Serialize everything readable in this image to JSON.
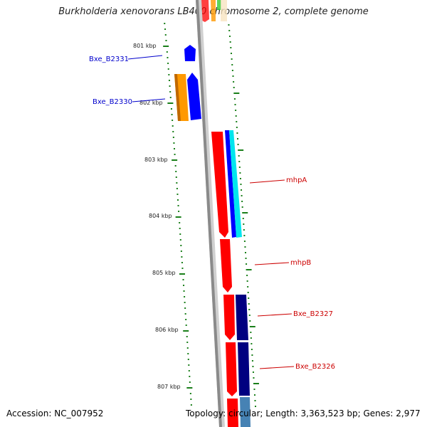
{
  "title": "Burkholderia xenovorans LB400 chromosome 2, complete genome",
  "footer": {
    "accession": "Accession: NC_007952",
    "topology": "Topology: circular; Length: 3,363,523 bp; Genes: 2,977"
  },
  "ticks": [
    "801 kbp",
    "802 kbp",
    "803 kbp",
    "804 kbp",
    "805 kbp",
    "806 kbp",
    "807 kbp"
  ],
  "genes": [
    {
      "label": "Bxe_B2331",
      "color": "#0000cc"
    },
    {
      "label": "Bxe_B2330",
      "color": "#0000cc"
    },
    {
      "label": "mhpA",
      "color": "#cc0000"
    },
    {
      "label": "mhpB",
      "color": "#cc0000"
    },
    {
      "label": "Bxe_B2327",
      "color": "#cc0000"
    },
    {
      "label": "Bxe_B2326",
      "color": "#cc0000"
    }
  ],
  "colors": {
    "backbone": "#8a8a8a",
    "tick": "#1a7f1a",
    "red": "#ff0000",
    "blue": "#0000ff",
    "navy": "#000080",
    "cyan": "#00ffff",
    "orange": "#ff9900",
    "steel": "#4682b4"
  }
}
